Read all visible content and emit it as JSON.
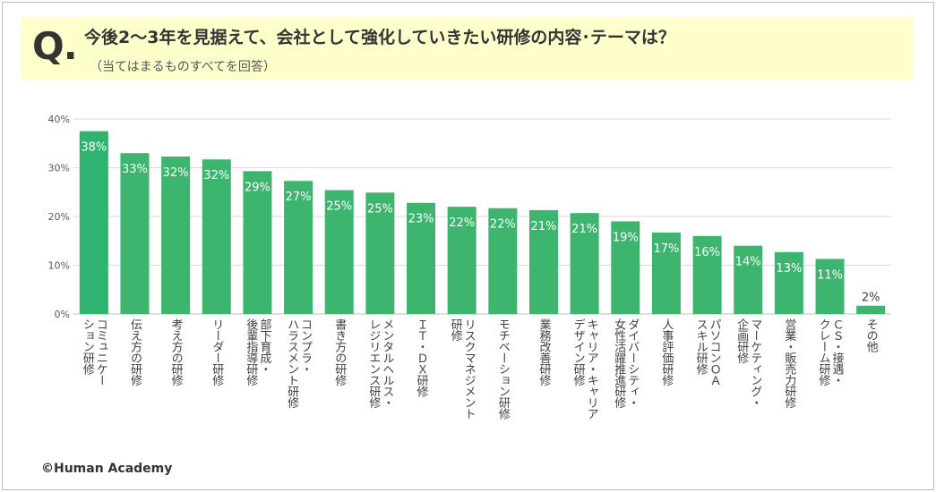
{
  "header": {
    "q_mark": "Q.",
    "title": "今後2～3年を見据えて、会社として強化していきたい研修の内容･テーマは？",
    "subtitle": "（当てはまるものすべてを回答）"
  },
  "footer": {
    "copyright": "©Human Academy"
  },
  "colors": {
    "bar": "#3db56f",
    "bar_highlight": "#2eb470",
    "header_bg": "#ffffcc",
    "grid": "#d9d9d9"
  },
  "chart_data": {
    "type": "bar",
    "ylim": [
      0,
      40
    ],
    "yticks": [
      "0%",
      "10%",
      "20%",
      "30%",
      "40%"
    ],
    "ytick_values": [
      0,
      10,
      20,
      30,
      40
    ],
    "grid": true,
    "categories": [
      [
        "コミュニケー",
        "ション研修"
      ],
      [
        "伝え方の研修"
      ],
      [
        "考え方の研修"
      ],
      [
        "リーダー研修"
      ],
      [
        "部下育成・",
        "後輩指導研修"
      ],
      [
        "コンプラ・",
        "ハラスメント研修"
      ],
      [
        "書き方の研修"
      ],
      [
        "メンタルヘルス・",
        "レジリエンス研修"
      ],
      [
        "ＩＴ・ＤＸ研修"
      ],
      [
        "リスクマネジメント",
        "研修"
      ],
      [
        "モチベーション研修"
      ],
      [
        "業務改善研修"
      ],
      [
        "キャリア・キャリア",
        "デザイン研修"
      ],
      [
        "ダイバーシティ・",
        "女性活躍推進研修"
      ],
      [
        "人事評価研修"
      ],
      [
        "パソコンＯＡ",
        "スキル研修"
      ],
      [
        "マーケティング・",
        "企画研修"
      ],
      [
        "営業・販売力研修"
      ],
      [
        "ＣＳ・接遇・",
        "クレーム研修"
      ],
      [
        "その他"
      ]
    ],
    "values": [
      37.5,
      33,
      32.3,
      31.7,
      29.3,
      27.3,
      25.4,
      24.9,
      22.8,
      22,
      21.7,
      21.3,
      20.7,
      19,
      16.7,
      16,
      14,
      12.7,
      11.3,
      1.7
    ],
    "data_labels": [
      "38%",
      "33%",
      "32%",
      "32%",
      "29%",
      "27%",
      "25%",
      "25%",
      "23%",
      "22%",
      "22%",
      "21%",
      "21%",
      "19%",
      "17%",
      "16%",
      "14%",
      "13%",
      "11%",
      "2%"
    ]
  }
}
